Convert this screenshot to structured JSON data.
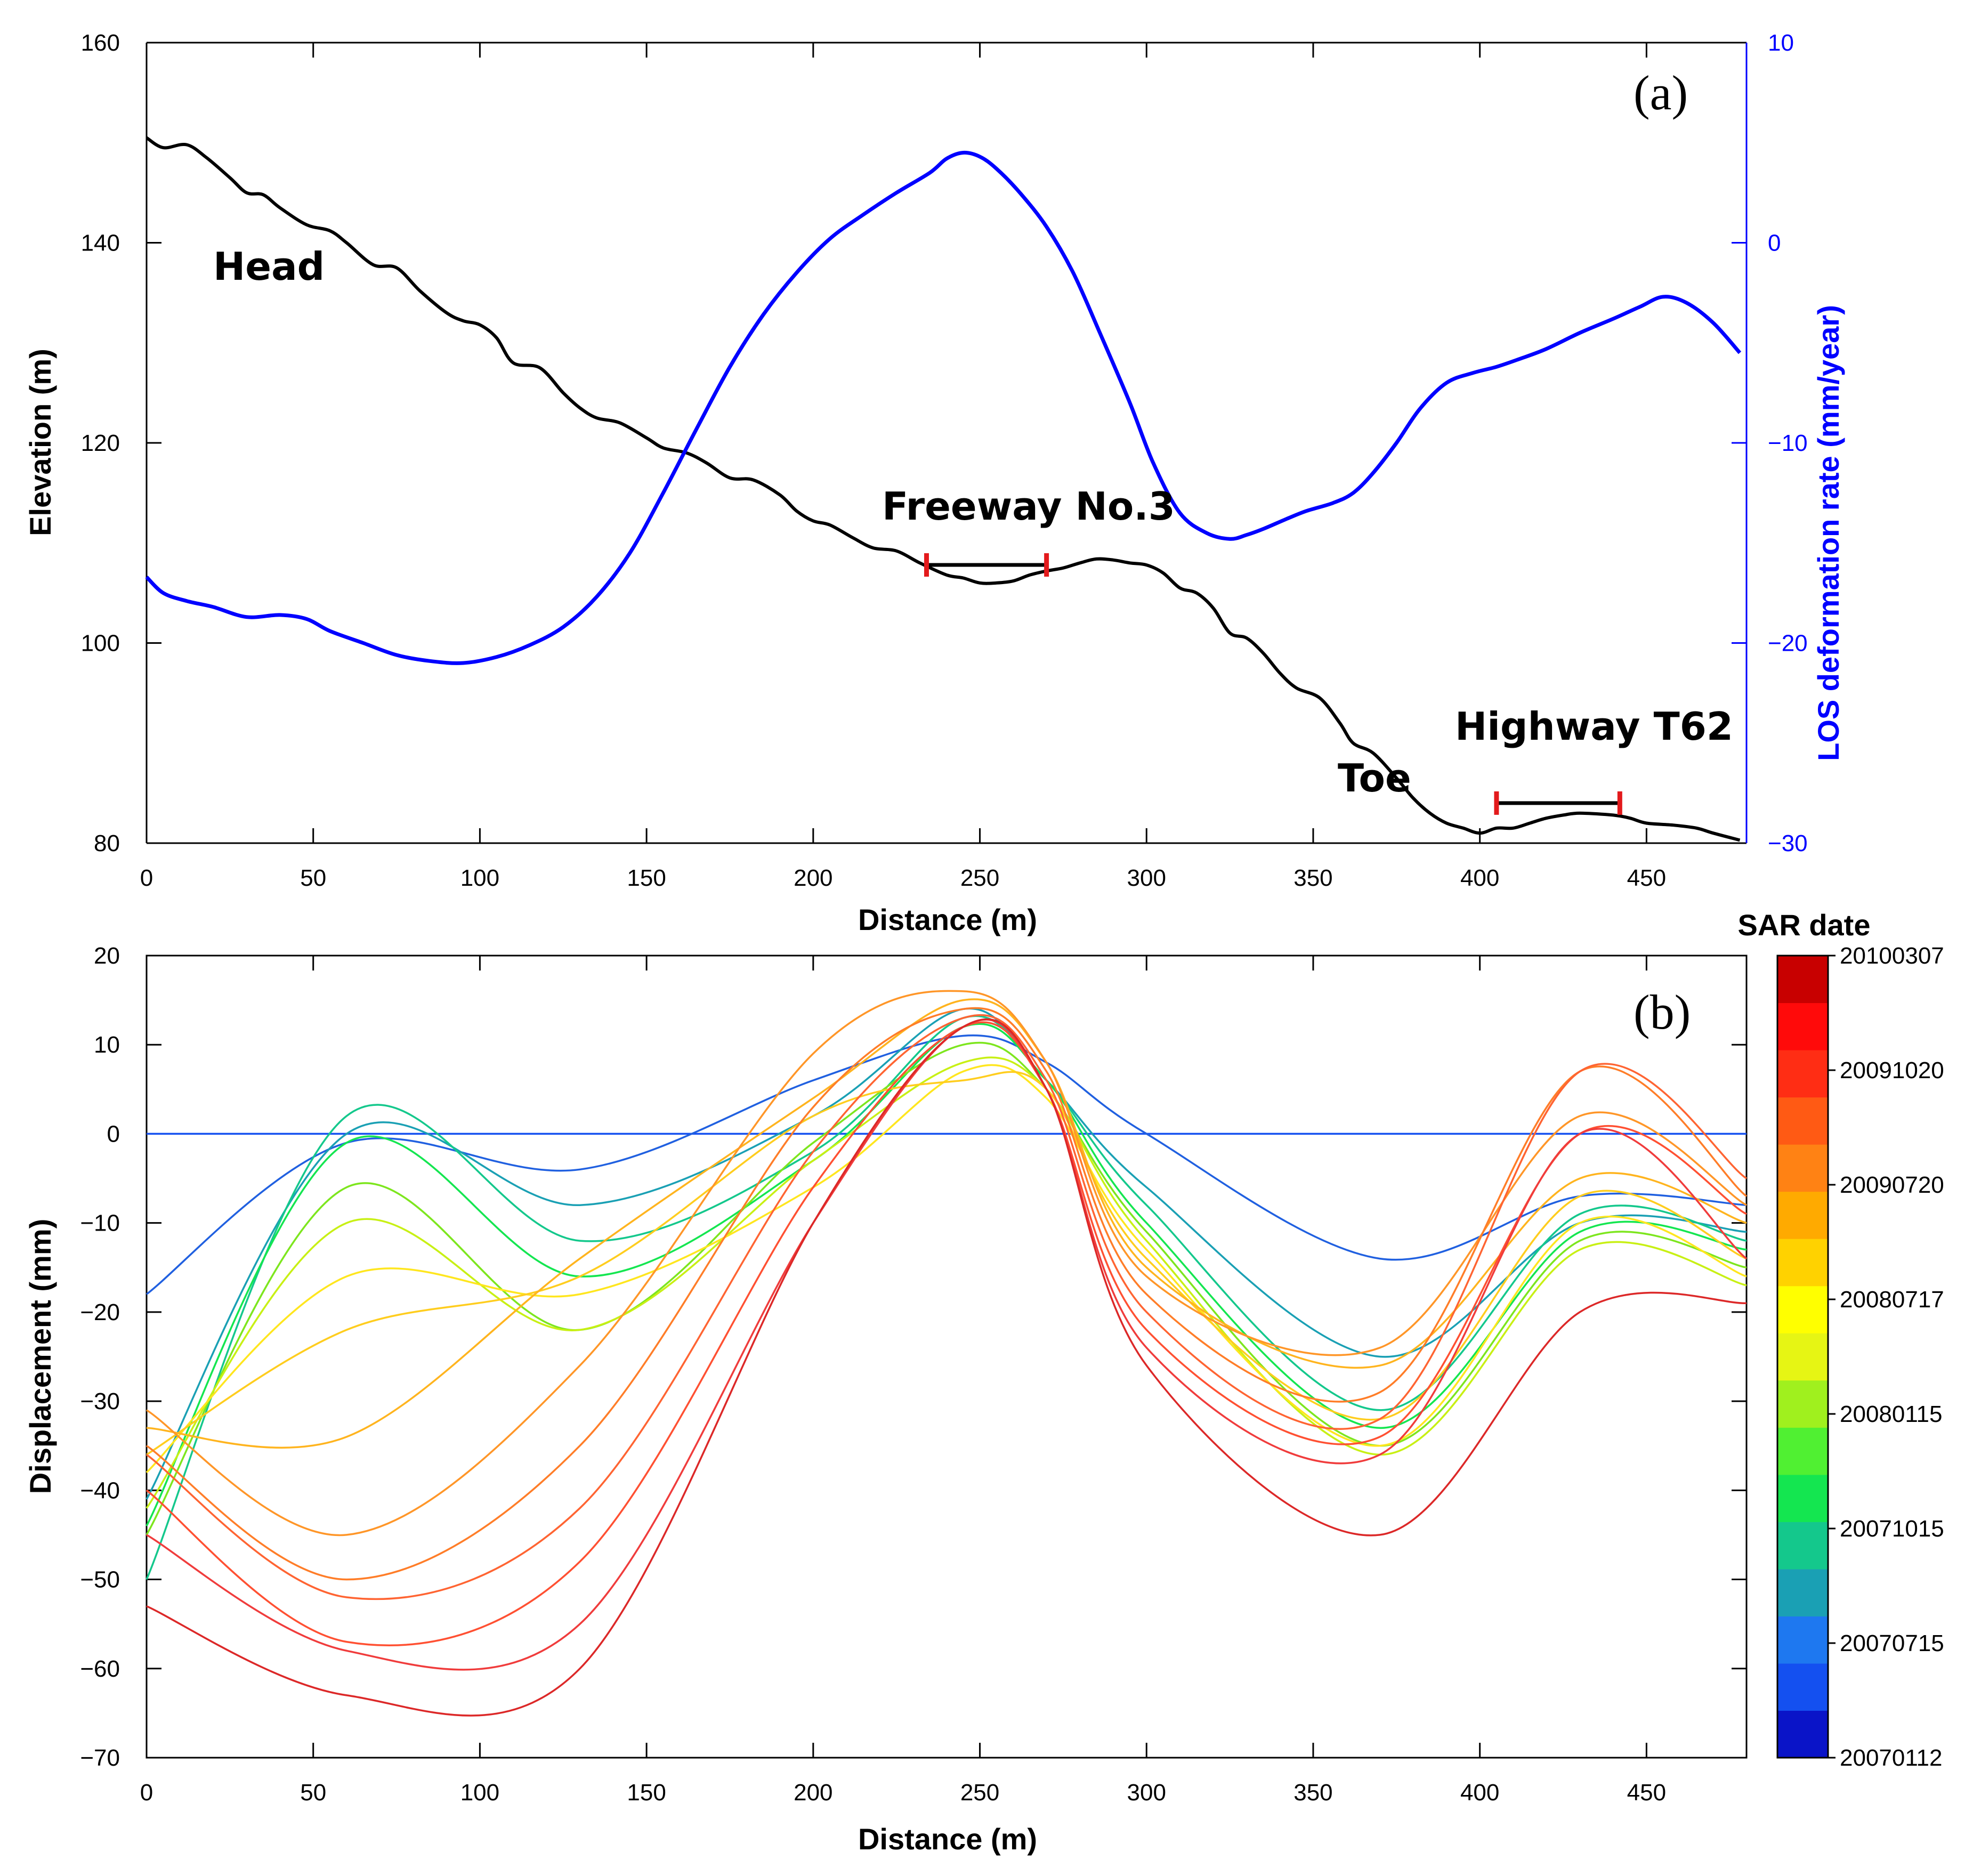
{
  "chart_data": [
    {
      "panel": "(a)",
      "type": "line",
      "xlabel": "Distance (m)",
      "ylabel": "Elevation (m)",
      "ylabel_right": "LOS deformation rate (mm/year)",
      "xlim": [
        0,
        480
      ],
      "ylim": [
        80,
        160
      ],
      "ylim_right": [
        -30,
        10
      ],
      "x_ticks": [
        0,
        50,
        100,
        150,
        200,
        250,
        300,
        350,
        400,
        450
      ],
      "y_ticks": [
        80,
        100,
        120,
        140,
        160
      ],
      "y_ticks_right": [
        -30,
        -20,
        -10,
        0,
        10
      ],
      "y_tick_labels_right": [
        "−30",
        "−20",
        "−10",
        "0",
        "10"
      ],
      "series": [
        {
          "axis": "left",
          "color": "#000000",
          "points": [
            [
              0,
              150.5
            ],
            [
              5,
              149.5
            ],
            [
              12,
              149.8
            ],
            [
              18,
              148.5
            ],
            [
              25,
              146.5
            ],
            [
              30,
              145
            ],
            [
              35,
              144.8
            ],
            [
              40,
              143.5
            ],
            [
              48,
              141.8
            ],
            [
              55,
              141.2
            ],
            [
              60,
              140
            ],
            [
              68,
              137.8
            ],
            [
              75,
              137.5
            ],
            [
              82,
              135.2
            ],
            [
              90,
              133
            ],
            [
              95,
              132.2
            ],
            [
              100,
              131.8
            ],
            [
              105,
              130.5
            ],
            [
              110,
              128
            ],
            [
              118,
              127.5
            ],
            [
              125,
              125
            ],
            [
              130,
              123.5
            ],
            [
              135,
              122.5
            ],
            [
              142,
              122
            ],
            [
              150,
              120.5
            ],
            [
              155,
              119.5
            ],
            [
              162,
              119
            ],
            [
              168,
              118
            ],
            [
              175,
              116.5
            ],
            [
              182,
              116.3
            ],
            [
              190,
              114.8
            ],
            [
              195,
              113.2
            ],
            [
              200,
              112.2
            ],
            [
              205,
              111.8
            ],
            [
              212,
              110.5
            ],
            [
              218,
              109.5
            ],
            [
              225,
              109.2
            ],
            [
              232,
              108
            ],
            [
              240,
              106.8
            ],
            [
              245,
              106.5
            ],
            [
              250,
              106
            ],
            [
              255,
              106
            ],
            [
              260,
              106.2
            ],
            [
              265,
              106.8
            ],
            [
              270,
              107.2
            ],
            [
              275,
              107.5
            ],
            [
              280,
              108
            ],
            [
              285,
              108.4
            ],
            [
              290,
              108.3
            ],
            [
              295,
              108
            ],
            [
              300,
              107.8
            ],
            [
              305,
              107
            ],
            [
              310,
              105.5
            ],
            [
              315,
              105
            ],
            [
              320,
              103.5
            ],
            [
              325,
              101
            ],
            [
              330,
              100.5
            ],
            [
              335,
              99
            ],
            [
              340,
              97
            ],
            [
              345,
              95.5
            ],
            [
              352,
              94.5
            ],
            [
              358,
              92
            ],
            [
              362,
              90
            ],
            [
              368,
              89
            ],
            [
              375,
              86.5
            ],
            [
              380,
              84.5
            ],
            [
              385,
              83
            ],
            [
              390,
              82
            ],
            [
              395,
              81.5
            ],
            [
              400,
              81
            ],
            [
              405,
              81.5
            ],
            [
              410,
              81.5
            ],
            [
              415,
              82
            ],
            [
              420,
              82.5
            ],
            [
              425,
              82.8
            ],
            [
              430,
              83
            ],
            [
              440,
              82.8
            ],
            [
              445,
              82.5
            ],
            [
              450,
              82
            ],
            [
              458,
              81.8
            ],
            [
              465,
              81.5
            ],
            [
              470,
              81
            ],
            [
              478,
              80.3
            ]
          ]
        },
        {
          "axis": "right",
          "color": "#0000ff",
          "points": [
            [
              0,
              -16.7
            ],
            [
              5,
              -17.5
            ],
            [
              12,
              -17.9
            ],
            [
              20,
              -18.2
            ],
            [
              30,
              -18.7
            ],
            [
              40,
              -18.6
            ],
            [
              48,
              -18.8
            ],
            [
              55,
              -19.4
            ],
            [
              65,
              -20
            ],
            [
              75,
              -20.6
            ],
            [
              85,
              -20.9
            ],
            [
              95,
              -21
            ],
            [
              105,
              -20.7
            ],
            [
              115,
              -20.1
            ],
            [
              125,
              -19.2
            ],
            [
              135,
              -17.7
            ],
            [
              145,
              -15.5
            ],
            [
              155,
              -12.5
            ],
            [
              165,
              -9.3
            ],
            [
              175,
              -6.2
            ],
            [
              185,
              -3.6
            ],
            [
              195,
              -1.5
            ],
            [
              205,
              0.2
            ],
            [
              215,
              1.4
            ],
            [
              225,
              2.5
            ],
            [
              235,
              3.5
            ],
            [
              240,
              4.2
            ],
            [
              245,
              4.5
            ],
            [
              250,
              4.3
            ],
            [
              255,
              3.7
            ],
            [
              262,
              2.5
            ],
            [
              270,
              0.8
            ],
            [
              278,
              -1.5
            ],
            [
              286,
              -4.5
            ],
            [
              295,
              -8
            ],
            [
              302,
              -11
            ],
            [
              310,
              -13.5
            ],
            [
              318,
              -14.5
            ],
            [
              325,
              -14.8
            ],
            [
              330,
              -14.6
            ],
            [
              335,
              -14.3
            ],
            [
              342,
              -13.8
            ],
            [
              348,
              -13.4
            ],
            [
              356,
              -13
            ],
            [
              362,
              -12.5
            ],
            [
              368,
              -11.5
            ],
            [
              375,
              -10
            ],
            [
              382,
              -8.3
            ],
            [
              390,
              -7
            ],
            [
              398,
              -6.5
            ],
            [
              405,
              -6.2
            ],
            [
              412,
              -5.8
            ],
            [
              420,
              -5.3
            ],
            [
              430,
              -4.5
            ],
            [
              440,
              -3.8
            ],
            [
              448,
              -3.2
            ],
            [
              455,
              -2.7
            ],
            [
              462,
              -3
            ],
            [
              470,
              -4
            ],
            [
              478,
              -5.5
            ]
          ]
        }
      ],
      "annotations": [
        "Head",
        "Freeway No.3",
        "Toe",
        "Highway T62"
      ],
      "segments": [
        {
          "x": [
            234,
            270
          ],
          "y": 107.8
        },
        {
          "x": [
            405,
            442
          ],
          "y": 84
        }
      ]
    },
    {
      "panel": "(b)",
      "type": "line",
      "xlabel": "Distance (m)",
      "ylabel": "Displacement (mm)",
      "xlim": [
        0,
        480
      ],
      "ylim": [
        -70,
        20
      ],
      "x_ticks": [
        0,
        50,
        100,
        150,
        200,
        250,
        300,
        350,
        400,
        450
      ],
      "y_ticks": [
        -70,
        -60,
        -50,
        -40,
        -30,
        -20,
        -10,
        0,
        10,
        20
      ],
      "y_tick_labels": [
        "−70",
        "−60",
        "−50",
        "−40",
        "−30",
        "−20",
        "−10",
        "0",
        "10",
        "20"
      ],
      "colorbar": {
        "title": "SAR date",
        "labels": [
          "20100307",
          "20091020",
          "20090720",
          "20080717",
          "20080115",
          "20071015",
          "20070715",
          "20070112"
        ],
        "colors": [
          "#0a14c8",
          "#1450f0",
          "#1e78f0",
          "#1aa0b4",
          "#14c88c",
          "#14e650",
          "#50f032",
          "#a0f01e",
          "#e6f514",
          "#ffff00",
          "#ffd200",
          "#ffaa00",
          "#ff8214",
          "#ff5a14",
          "#ff2d14",
          "#ff0a0a",
          "#c80000"
        ]
      },
      "x": [
        0,
        60,
        130,
        200,
        245,
        270,
        300,
        370,
        430,
        480
      ],
      "series": [
        {
          "color": "#1450f0",
          "values": [
            0,
            0,
            0,
            0,
            0,
            0,
            0,
            0,
            0,
            0
          ]
        },
        {
          "color": "#2060e0",
          "values": [
            -18,
            -1,
            -4,
            6,
            11,
            8,
            0,
            -14,
            -7,
            -8
          ]
        },
        {
          "color": "#1aa0b4",
          "values": [
            -41,
            0,
            -8,
            2,
            14,
            6,
            -6,
            -25,
            -10,
            -11
          ]
        },
        {
          "color": "#14c88c",
          "values": [
            -50,
            2,
            -12,
            -2,
            13,
            6,
            -8,
            -31,
            -9,
            -12
          ]
        },
        {
          "color": "#14e650",
          "values": [
            -44,
            -1,
            -16,
            -3,
            12,
            6,
            -10,
            -33,
            -11,
            -13
          ]
        },
        {
          "color": "#7de61e",
          "values": [
            -45,
            -6,
            -22,
            -1,
            10,
            5,
            -11,
            -35,
            -12,
            -15
          ]
        },
        {
          "color": "#c8f014",
          "values": [
            -42,
            -10,
            -22,
            -3,
            8,
            5,
            -12,
            -36,
            -13,
            -17
          ]
        },
        {
          "color": "#ffe61e",
          "values": [
            -38,
            -16,
            -18,
            -6,
            7,
            4,
            -13,
            -35,
            -10,
            -16
          ]
        },
        {
          "color": "#ffcd1e",
          "values": [
            -36,
            -22,
            -16,
            2,
            6,
            5,
            -14,
            -32,
            -7,
            -14
          ]
        },
        {
          "color": "#ffb41e",
          "values": [
            -33,
            -34,
            -14,
            4,
            15,
            8,
            -15,
            -26,
            -5,
            -10
          ]
        },
        {
          "color": "#ff9628",
          "values": [
            -31,
            -45,
            -26,
            9,
            16,
            8,
            -16,
            -24,
            2,
            -8
          ]
        },
        {
          "color": "#ff7d28",
          "values": [
            -35,
            -50,
            -35,
            3,
            14,
            7,
            -18,
            -29,
            7,
            -7
          ]
        },
        {
          "color": "#ff6432",
          "values": [
            -36,
            -52,
            -42,
            -2,
            13,
            6,
            -20,
            -32,
            7,
            -5
          ]
        },
        {
          "color": "#ff5032",
          "values": [
            -40,
            -57,
            -48,
            -6,
            12,
            5,
            -22,
            -34,
            0,
            -9
          ]
        },
        {
          "color": "#f03c3c",
          "values": [
            -45,
            -58,
            -55,
            -10,
            12,
            5,
            -24,
            -36,
            0,
            -14
          ]
        },
        {
          "color": "#dc2828",
          "values": [
            -53,
            -63,
            -60,
            -10,
            12,
            5,
            -26,
            -45,
            -20,
            -19
          ]
        }
      ]
    }
  ]
}
